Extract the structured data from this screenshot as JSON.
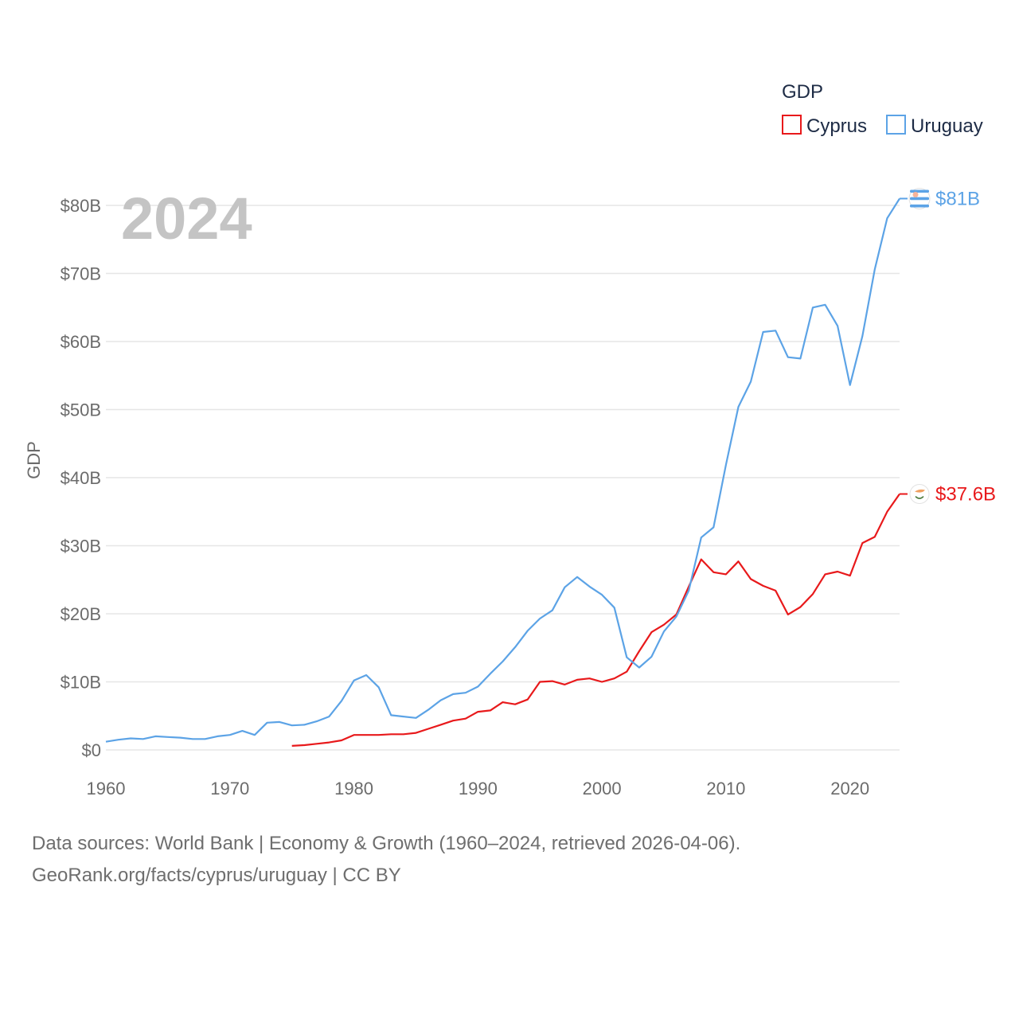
{
  "chart_data": {
    "type": "line",
    "year_label": "2024",
    "ylabel": "GDP",
    "xlim": [
      1960,
      2024
    ],
    "ylim": [
      0,
      80
    ],
    "x_ticks": [
      1960,
      1970,
      1980,
      1990,
      2000,
      2010,
      2020
    ],
    "y_ticks": [
      {
        "value": 0,
        "label": "$0"
      },
      {
        "value": 10,
        "label": "$10B"
      },
      {
        "value": 20,
        "label": "$20B"
      },
      {
        "value": 30,
        "label": "$30B"
      },
      {
        "value": 40,
        "label": "$40B"
      },
      {
        "value": 50,
        "label": "$50B"
      },
      {
        "value": 60,
        "label": "$60B"
      },
      {
        "value": 70,
        "label": "$70B"
      },
      {
        "value": 80,
        "label": "$80B"
      }
    ],
    "legend": {
      "title": "GDP",
      "position": "top-right"
    },
    "series": [
      {
        "name": "Cyprus",
        "color": "#e8191b",
        "end_label": "$37.6B",
        "flag_icon": "cyprus-flag-icon",
        "start_year": 1975,
        "values": [
          0.6,
          0.7,
          0.9,
          1.1,
          1.4,
          2.2,
          2.2,
          2.2,
          2.3,
          2.3,
          2.5,
          3.1,
          3.7,
          4.3,
          4.6,
          5.6,
          5.8,
          7.0,
          6.7,
          7.4,
          10.0,
          10.1,
          9.6,
          10.3,
          10.5,
          10.0,
          10.5,
          11.5,
          14.5,
          17.3,
          18.4,
          19.9,
          24.0,
          28.0,
          26.1,
          25.8,
          27.7,
          25.1,
          24.1,
          23.4,
          19.9,
          21.0,
          22.9,
          25.8,
          26.2,
          25.6,
          30.4,
          31.3,
          35.0,
          37.6
        ]
      },
      {
        "name": "Uruguay",
        "color": "#5ca3e6",
        "end_label": "$81B",
        "flag_icon": "uruguay-flag-icon",
        "start_year": 1960,
        "values": [
          1.2,
          1.5,
          1.7,
          1.6,
          2.0,
          1.9,
          1.8,
          1.6,
          1.6,
          2.0,
          2.2,
          2.8,
          2.2,
          4.0,
          4.1,
          3.6,
          3.7,
          4.2,
          4.9,
          7.2,
          10.2,
          11.0,
          9.2,
          5.1,
          4.9,
          4.7,
          5.9,
          7.3,
          8.2,
          8.4,
          9.3,
          11.2,
          13.0,
          15.1,
          17.5,
          19.3,
          20.5,
          23.9,
          25.4,
          24.0,
          22.8,
          20.9,
          13.6,
          12.1,
          13.7,
          17.4,
          19.6,
          23.4,
          31.2,
          32.7,
          41.9,
          50.4,
          54.1,
          61.4,
          61.6,
          57.7,
          57.5,
          65.0,
          65.4,
          62.3,
          53.6,
          60.8,
          70.6,
          78.1,
          81.0
        ]
      }
    ]
  },
  "footer": {
    "line1": "Data sources: World Bank | Economy & Growth (1960–2024, retrieved 2026-04-06).",
    "line2": "GeoRank.org/facts/cyprus/uruguay | CC BY"
  }
}
